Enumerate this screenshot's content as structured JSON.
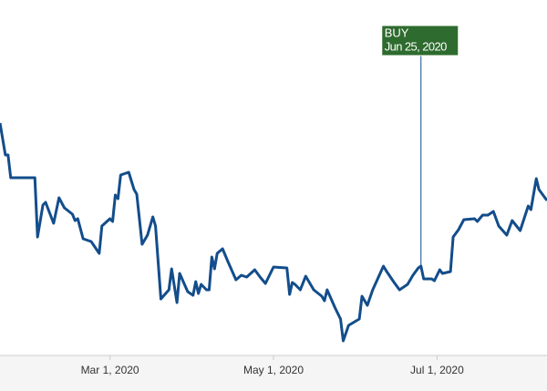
{
  "chart_data": {
    "type": "line",
    "x": [
      "2020-01-20",
      "2020-01-22",
      "2020-01-23",
      "2020-01-24",
      "2020-02-02",
      "2020-02-03",
      "2020-02-05",
      "2020-02-06",
      "2020-02-09",
      "2020-02-11",
      "2020-02-13",
      "2020-02-16",
      "2020-02-17",
      "2020-02-18",
      "2020-02-20",
      "2020-02-23",
      "2020-02-26",
      "2020-02-27",
      "2020-03-01",
      "2020-03-02",
      "2020-03-03",
      "2020-03-04",
      "2020-03-05",
      "2020-03-08",
      "2020-03-10",
      "2020-03-11",
      "2020-03-13",
      "2020-03-15",
      "2020-03-17",
      "2020-03-18",
      "2020-03-20",
      "2020-03-23",
      "2020-03-24",
      "2020-03-26",
      "2020-03-27",
      "2020-03-30",
      "2020-04-01",
      "2020-04-02",
      "2020-04-03",
      "2020-04-04",
      "2020-04-06",
      "2020-04-07",
      "2020-04-08",
      "2020-04-09",
      "2020-04-10",
      "2020-04-12",
      "2020-04-14",
      "2020-04-17",
      "2020-04-19",
      "2020-04-21",
      "2020-04-24",
      "2020-04-26",
      "2020-04-28",
      "2020-05-01",
      "2020-05-06",
      "2020-05-07",
      "2020-05-08",
      "2020-05-09",
      "2020-05-11",
      "2020-05-13",
      "2020-05-16",
      "2020-05-19",
      "2020-05-20",
      "2020-05-21",
      "2020-05-24",
      "2020-05-26",
      "2020-05-27",
      "2020-05-29",
      "2020-06-02",
      "2020-06-03",
      "2020-06-05",
      "2020-06-07",
      "2020-06-11",
      "2020-06-12",
      "2020-06-15",
      "2020-06-17",
      "2020-06-20",
      "2020-06-22",
      "2020-06-24",
      "2020-06-25",
      "2020-06-26",
      "2020-06-29",
      "2020-06-30",
      "2020-07-02",
      "2020-07-03",
      "2020-07-06",
      "2020-07-07",
      "2020-07-09",
      "2020-07-11",
      "2020-07-15",
      "2020-07-16",
      "2020-07-18",
      "2020-07-20",
      "2020-07-22",
      "2020-07-24",
      "2020-07-27",
      "2020-07-29",
      "2020-08-01",
      "2020-08-04",
      "2020-08-05",
      "2020-08-07",
      "2020-08-08",
      "2020-08-11"
    ],
    "series": [
      {
        "color": "#134d8b",
        "values": [
          255,
          220,
          220,
          195,
          195,
          130,
          165,
          168,
          145,
          173,
          162,
          155,
          148,
          150,
          128,
          125,
          112,
          142,
          150,
          147,
          176,
          172,
          198,
          201,
          182,
          177,
          122,
          132,
          152,
          142,
          62,
          72,
          95,
          58,
          90,
          70,
          66,
          81,
          68,
          78,
          72,
          72,
          108,
          95,
          112,
          117,
          103,
          83,
          88,
          86,
          94,
          86,
          79,
          97,
          96,
          67,
          80,
          78,
          72,
          87,
          72,
          65,
          60,
          72,
          52,
          40,
          16,
          33,
          40,
          65,
          55,
          72,
          98,
          93,
          80,
          72,
          78,
          88,
          96,
          98,
          84,
          84,
          82,
          94,
          90,
          92,
          130,
          138,
          149,
          150,
          147,
          154,
          154,
          158,
          142,
          132,
          148,
          137,
          164,
          160,
          194,
          182,
          170
        ]
      }
    ],
    "xlim": [
      "2020-01-20",
      "2020-08-11"
    ],
    "xticks": [
      {
        "value": "2020-03-01",
        "label": "Mar 1, 2020"
      },
      {
        "value": "2020-05-01",
        "label": "May 1, 2020"
      },
      {
        "value": "2020-07-01",
        "label": "Jul 1, 2020"
      }
    ],
    "ylim": [
      0,
      390
    ],
    "annotations": [
      {
        "x": "2020-06-25",
        "label": "BUY",
        "date_label": "Jun 25, 2020",
        "color": "#2e6b2e"
      }
    ]
  }
}
